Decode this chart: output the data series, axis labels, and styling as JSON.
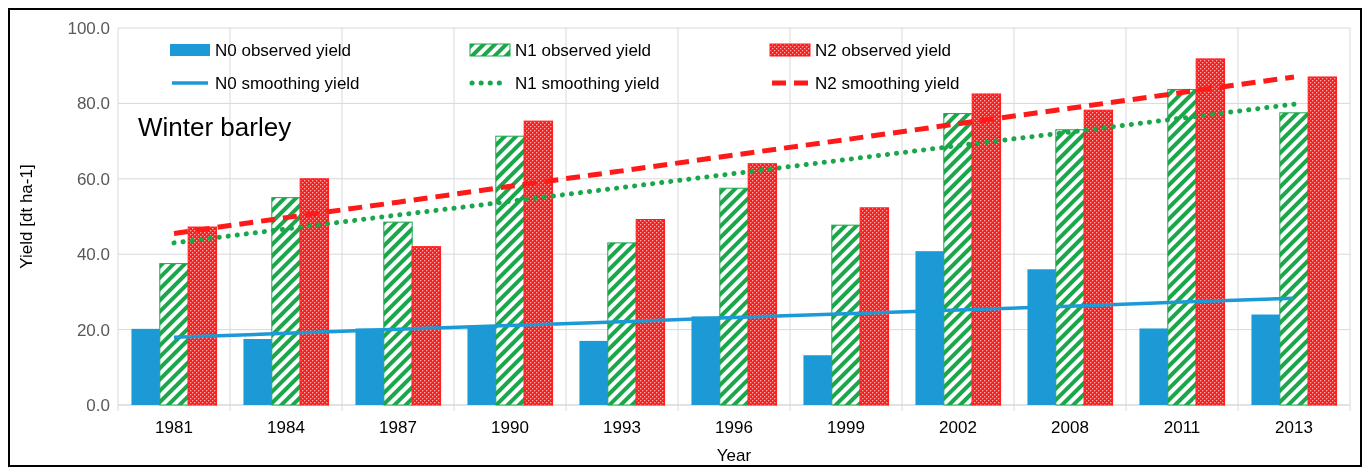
{
  "chart_data": {
    "type": "bar",
    "ylabel": "Yield [dt ha-1]",
    "xlabel": "Year",
    "annotations": [
      "Winter barley"
    ],
    "categories": [
      "1981",
      "1984",
      "1987",
      "1990",
      "1993",
      "1996",
      "1999",
      "2002",
      "2008",
      "2011",
      "2013"
    ],
    "ylim": [
      0,
      100
    ],
    "yticks": [
      {
        "value": 0,
        "label": "0.0"
      },
      {
        "value": 20,
        "label": "20.0"
      },
      {
        "value": 40,
        "label": "40.0"
      },
      {
        "value": 60,
        "label": "60.0"
      },
      {
        "value": 80,
        "label": "80.0"
      },
      {
        "value": 100,
        "label": "100.0"
      }
    ],
    "grid": true,
    "legend": "top",
    "series": [
      {
        "name": "N0 observed yield",
        "type": "bar",
        "color": "#1b9ad6",
        "values": [
          20.2,
          17.5,
          20.3,
          21.0,
          17.0,
          23.5,
          13.2,
          40.8,
          36.0,
          20.3,
          24.0
        ]
      },
      {
        "name": "N1 observed yield",
        "type": "bar",
        "color": "#1aa64a",
        "values": [
          37.5,
          55.0,
          48.5,
          71.3,
          43.0,
          57.5,
          47.7,
          77.3,
          73.0,
          83.7,
          77.5
        ]
      },
      {
        "name": "N2 observed yield",
        "type": "bar",
        "color": "#ff1a1a",
        "values": [
          47.2,
          60.0,
          42.0,
          75.3,
          49.2,
          64.0,
          52.3,
          82.5,
          78.2,
          91.8,
          87.0
        ]
      },
      {
        "name": "N0 smoothing yield",
        "type": "line",
        "line_style": "solid",
        "color": "#1b9ad6",
        "values": [
          18.0,
          19.0,
          20.1,
          21.1,
          22.1,
          23.2,
          24.2,
          25.2,
          26.2,
          27.3,
          28.3
        ]
      },
      {
        "name": "N1 smoothing yield",
        "type": "line",
        "line_style": "dotted",
        "color": "#1aa64a",
        "values": [
          43.0,
          46.7,
          50.4,
          54.0,
          57.7,
          61.4,
          65.1,
          68.8,
          72.4,
          76.1,
          79.8
        ]
      },
      {
        "name": "N2 smoothing yield",
        "type": "line",
        "line_style": "dashed",
        "color": "#ff1a1a",
        "values": [
          45.5,
          49.7,
          53.8,
          58.0,
          62.1,
          66.3,
          70.4,
          74.6,
          78.7,
          82.9,
          87.0
        ]
      }
    ]
  }
}
